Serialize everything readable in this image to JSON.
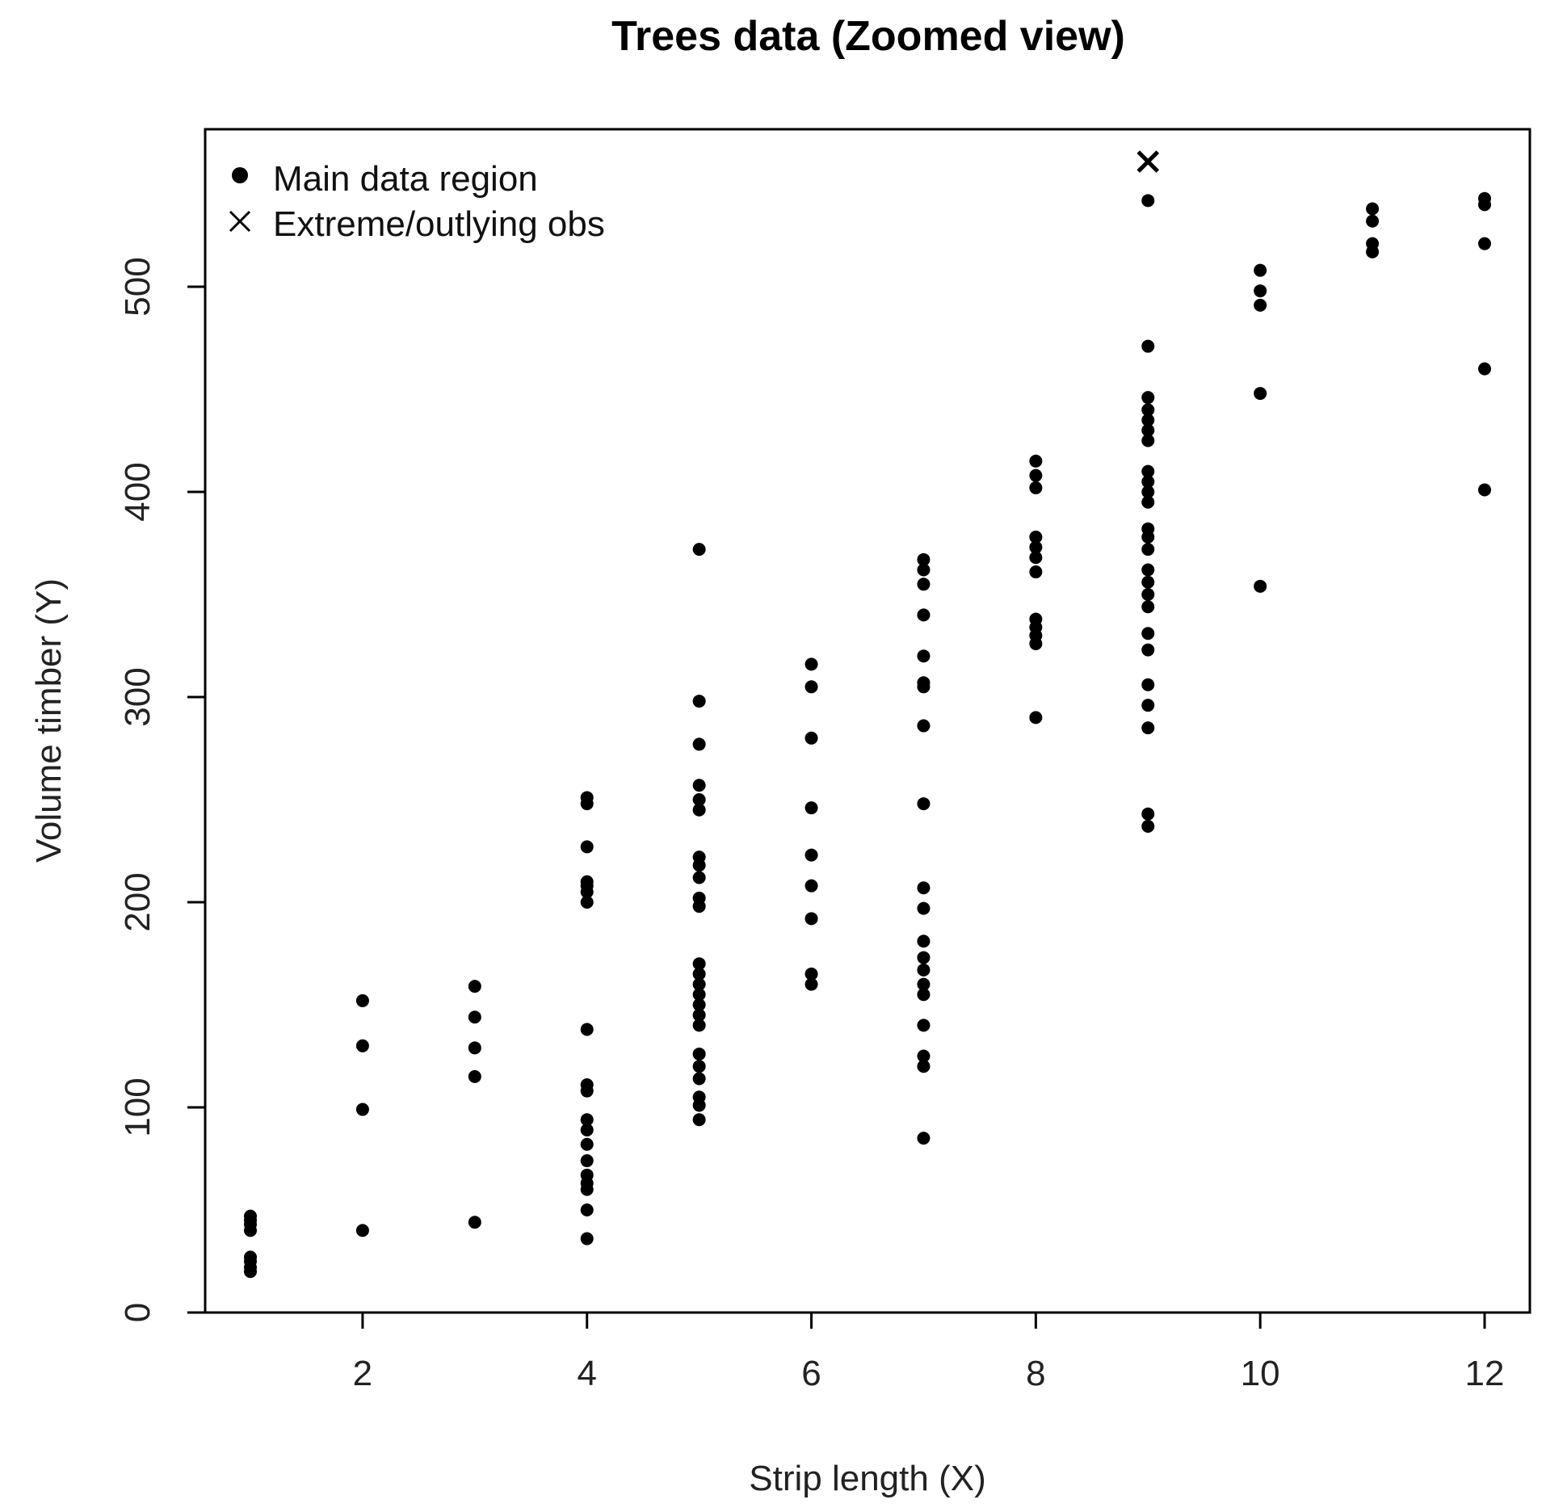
{
  "chart_data": {
    "type": "scatter",
    "title": "Trees data (Zoomed view)",
    "xlabel": "Strip length (X)",
    "ylabel": "Volume timber (Y)",
    "xlim": [
      0.5,
      12.5
    ],
    "ylim": [
      0,
      570
    ],
    "x_ticks": [
      2,
      4,
      6,
      8,
      10,
      12
    ],
    "y_ticks": [
      0,
      100,
      200,
      300,
      400,
      500
    ],
    "grid": false,
    "legend_position": "top-left",
    "legend": [
      {
        "label": "Main data region",
        "marker": "dot"
      },
      {
        "label": "Extreme/outlying obs",
        "marker": "cross"
      }
    ],
    "series": [
      {
        "name": "Main data region",
        "marker": "dot",
        "points": [
          [
            1,
            20
          ],
          [
            1,
            22
          ],
          [
            1,
            25
          ],
          [
            1,
            27
          ],
          [
            1,
            40
          ],
          [
            1,
            43
          ],
          [
            1,
            45
          ],
          [
            1,
            47
          ],
          [
            2,
            40
          ],
          [
            2,
            99
          ],
          [
            2,
            130
          ],
          [
            2,
            152
          ],
          [
            3,
            44
          ],
          [
            3,
            115
          ],
          [
            3,
            129
          ],
          [
            3,
            144
          ],
          [
            3,
            159
          ],
          [
            4,
            36
          ],
          [
            4,
            50
          ],
          [
            4,
            60
          ],
          [
            4,
            63
          ],
          [
            4,
            67
          ],
          [
            4,
            74
          ],
          [
            4,
            82
          ],
          [
            4,
            89
          ],
          [
            4,
            94
          ],
          [
            4,
            108
          ],
          [
            4,
            111
          ],
          [
            4,
            138
          ],
          [
            4,
            200
          ],
          [
            4,
            205
          ],
          [
            4,
            208
          ],
          [
            4,
            210
          ],
          [
            4,
            227
          ],
          [
            4,
            248
          ],
          [
            4,
            251
          ],
          [
            5,
            94
          ],
          [
            5,
            101
          ],
          [
            5,
            105
          ],
          [
            5,
            114
          ],
          [
            5,
            120
          ],
          [
            5,
            126
          ],
          [
            5,
            140
          ],
          [
            5,
            145
          ],
          [
            5,
            150
          ],
          [
            5,
            155
          ],
          [
            5,
            160
          ],
          [
            5,
            165
          ],
          [
            5,
            170
          ],
          [
            5,
            198
          ],
          [
            5,
            202
          ],
          [
            5,
            212
          ],
          [
            5,
            218
          ],
          [
            5,
            222
          ],
          [
            5,
            245
          ],
          [
            5,
            250
          ],
          [
            5,
            257
          ],
          [
            5,
            277
          ],
          [
            5,
            298
          ],
          [
            5,
            372
          ],
          [
            6,
            160
          ],
          [
            6,
            165
          ],
          [
            6,
            192
          ],
          [
            6,
            208
          ],
          [
            6,
            223
          ],
          [
            6,
            246
          ],
          [
            6,
            280
          ],
          [
            6,
            305
          ],
          [
            6,
            316
          ],
          [
            7,
            85
          ],
          [
            7,
            120
          ],
          [
            7,
            125
          ],
          [
            7,
            140
          ],
          [
            7,
            155
          ],
          [
            7,
            160
          ],
          [
            7,
            167
          ],
          [
            7,
            173
          ],
          [
            7,
            181
          ],
          [
            7,
            197
          ],
          [
            7,
            207
          ],
          [
            7,
            248
          ],
          [
            7,
            286
          ],
          [
            7,
            305
          ],
          [
            7,
            307
          ],
          [
            7,
            320
          ],
          [
            7,
            340
          ],
          [
            7,
            355
          ],
          [
            7,
            362
          ],
          [
            7,
            367
          ],
          [
            8,
            290
          ],
          [
            8,
            326
          ],
          [
            8,
            330
          ],
          [
            8,
            334
          ],
          [
            8,
            338
          ],
          [
            8,
            361
          ],
          [
            8,
            368
          ],
          [
            8,
            373
          ],
          [
            8,
            378
          ],
          [
            8,
            402
          ],
          [
            8,
            408
          ],
          [
            8,
            415
          ],
          [
            9,
            237
          ],
          [
            9,
            243
          ],
          [
            9,
            285
          ],
          [
            9,
            296
          ],
          [
            9,
            306
          ],
          [
            9,
            323
          ],
          [
            9,
            331
          ],
          [
            9,
            344
          ],
          [
            9,
            350
          ],
          [
            9,
            356
          ],
          [
            9,
            362
          ],
          [
            9,
            372
          ],
          [
            9,
            378
          ],
          [
            9,
            382
          ],
          [
            9,
            395
          ],
          [
            9,
            400
          ],
          [
            9,
            405
          ],
          [
            9,
            410
          ],
          [
            9,
            425
          ],
          [
            9,
            430
          ],
          [
            9,
            435
          ],
          [
            9,
            440
          ],
          [
            9,
            446
          ],
          [
            9,
            471
          ],
          [
            9,
            542
          ],
          [
            10,
            354
          ],
          [
            10,
            448
          ],
          [
            10,
            491
          ],
          [
            10,
            498
          ],
          [
            10,
            508
          ],
          [
            11,
            517
          ],
          [
            11,
            521
          ],
          [
            11,
            532
          ],
          [
            11,
            538
          ],
          [
            12,
            401
          ],
          [
            12,
            460
          ],
          [
            12,
            521
          ],
          [
            12,
            540
          ],
          [
            12,
            543
          ]
        ]
      },
      {
        "name": "Extreme/outlying obs",
        "marker": "cross",
        "points": [
          [
            9,
            561
          ]
        ]
      }
    ]
  }
}
